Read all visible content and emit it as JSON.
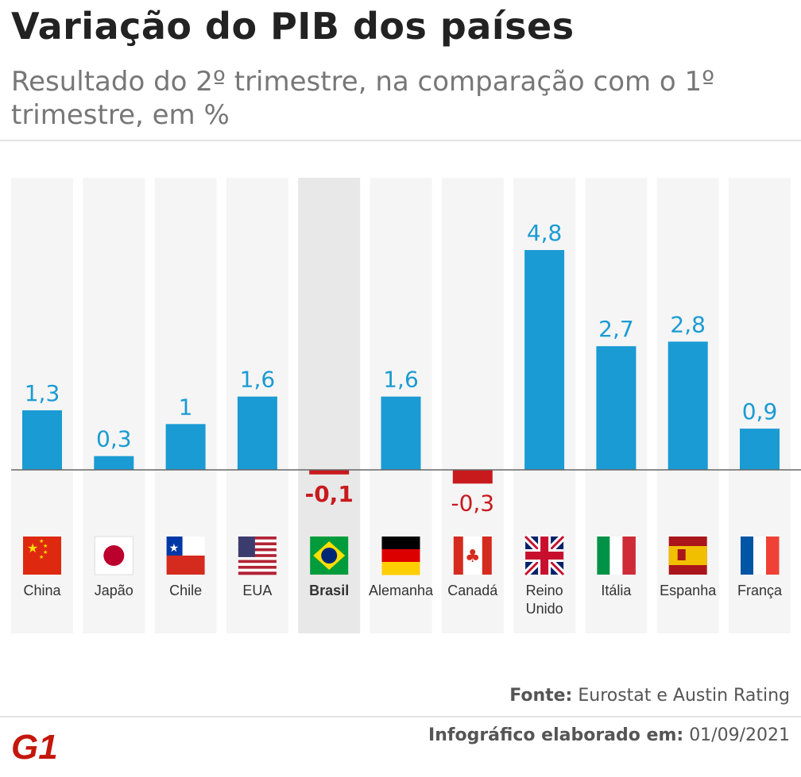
{
  "header": {
    "title": "Variação do PIB dos países",
    "subtitle": "Resultado do 2º trimestre, na comparação com o 1º trimestre, em %"
  },
  "footer": {
    "source_label": "Fonte:",
    "source_text": "Eurostat e Austin Rating",
    "made_label": "Infográfico elaborado em:",
    "made_date": "01/09/2021",
    "logo_text": "G1"
  },
  "colors": {
    "positive": "#1a9bd3",
    "negative": "#c8191d",
    "column_bg": "#f5f5f5",
    "highlight_bg": "#e8e8e8",
    "baseline": "#666666",
    "logo": "#c4170c"
  },
  "chart_data": {
    "type": "bar",
    "categories": [
      "China",
      "Japão",
      "Chile",
      "EUA",
      "Brasil",
      "Alemanha",
      "Canadá",
      "Reino Unido",
      "Itália",
      "Espanha",
      "França"
    ],
    "value_labels": [
      "1,3",
      "0,3",
      "1",
      "1,6",
      "-0,1",
      "1,6",
      "-0,3",
      "4,8",
      "2,7",
      "2,8",
      "0,9"
    ],
    "values": [
      1.3,
      0.3,
      1.0,
      1.6,
      -0.1,
      1.6,
      -0.3,
      4.8,
      2.7,
      2.8,
      0.9
    ],
    "flags": [
      "china-flag",
      "japan-flag",
      "chile-flag",
      "usa-flag",
      "brazil-flag",
      "germany-flag",
      "canada-flag",
      "uk-flag",
      "italy-flag",
      "spain-flag",
      "france-flag"
    ],
    "highlight": "Brasil",
    "ylim": [
      -0.3,
      4.8
    ]
  }
}
